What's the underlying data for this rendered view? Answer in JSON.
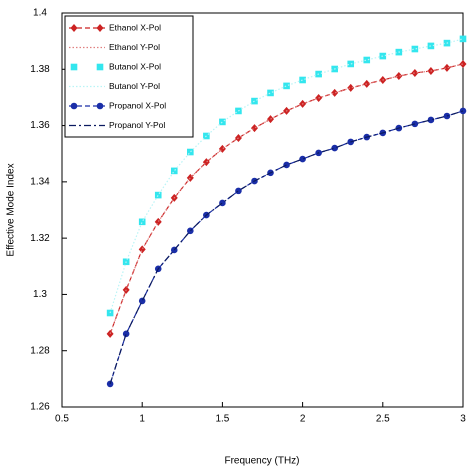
{
  "chart_data": {
    "type": "line",
    "xlabel": "Frequency (THz)",
    "ylabel": "Effective Mode Index",
    "x": [
      0.8,
      0.9,
      1.0,
      1.1,
      1.2,
      1.3,
      1.4,
      1.5,
      1.6,
      1.7,
      1.8,
      1.9,
      2.0,
      2.1,
      2.2,
      2.3,
      2.4,
      2.5,
      2.6,
      2.7,
      2.8,
      2.9,
      3.0
    ],
    "xlim": [
      0.5,
      3
    ],
    "xticks": [
      0.5,
      1,
      1.5,
      2,
      2.5,
      3
    ],
    "ylim": [
      1.26,
      1.4
    ],
    "yticks": [
      1.26,
      1.28,
      1.3,
      1.32,
      1.34,
      1.36,
      1.38,
      1.4
    ],
    "legend": "upper left",
    "series": [
      {
        "name": "Ethanol X-Pol",
        "color": "#cc2222",
        "marker": "diamond",
        "line": "dashed",
        "values": [
          1.286,
          1.3016,
          1.316,
          1.3258,
          1.3343,
          1.3414,
          1.347,
          1.3517,
          1.3556,
          1.3591,
          1.3623,
          1.3652,
          1.3677,
          1.3698,
          1.3716,
          1.3734,
          1.3748,
          1.3762,
          1.3776,
          1.3787,
          1.3794,
          1.3805,
          1.3819
        ]
      },
      {
        "name": "Ethanol Y-Pol",
        "color": "#e08080",
        "marker": null,
        "line": "dotted",
        "values": [
          1.286,
          1.3016,
          1.316,
          1.3258,
          1.3343,
          1.3414,
          1.347,
          1.3517,
          1.3556,
          1.3591,
          1.3623,
          1.3652,
          1.3677,
          1.3698,
          1.3716,
          1.3734,
          1.3748,
          1.3762,
          1.3776,
          1.3787,
          1.3794,
          1.3805,
          1.3819
        ]
      },
      {
        "name": "Butanol X-Pol",
        "color": "#33e6ee",
        "marker": "square",
        "line": null,
        "values": [
          1.2934,
          1.3116,
          1.3258,
          1.3353,
          1.3439,
          1.3506,
          1.3563,
          1.3613,
          1.3652,
          1.3687,
          1.3716,
          1.3741,
          1.3762,
          1.3783,
          1.3801,
          1.3819,
          1.3833,
          1.3847,
          1.3861,
          1.3872,
          1.3883,
          1.3893,
          1.3908
        ]
      },
      {
        "name": "Butanol Y-Pol",
        "color": "#b8f4f6",
        "marker": null,
        "line": "dotted",
        "values": [
          1.2934,
          1.3116,
          1.3258,
          1.3353,
          1.3439,
          1.3506,
          1.3563,
          1.3613,
          1.3652,
          1.3687,
          1.3716,
          1.3741,
          1.3762,
          1.3783,
          1.3801,
          1.3819,
          1.3833,
          1.3847,
          1.3861,
          1.3872,
          1.3883,
          1.3893,
          1.3908
        ]
      },
      {
        "name": "Propanol X-Pol",
        "color": "#1a2ea8",
        "marker": "circle",
        "line": "dashed",
        "values": [
          1.2682,
          1.286,
          1.2977,
          1.3091,
          1.3158,
          1.3226,
          1.3282,
          1.3325,
          1.3368,
          1.3403,
          1.3432,
          1.346,
          1.3481,
          1.3503,
          1.352,
          1.3542,
          1.3559,
          1.3574,
          1.3591,
          1.3606,
          1.362,
          1.3634,
          1.3652
        ]
      },
      {
        "name": "Propanol Y-Pol",
        "color": "#0b1a60",
        "marker": null,
        "line": "dashdot",
        "values": [
          1.2682,
          1.286,
          1.2977,
          1.3091,
          1.3158,
          1.3226,
          1.3282,
          1.3325,
          1.3368,
          1.3403,
          1.3432,
          1.346,
          1.3481,
          1.3503,
          1.352,
          1.3542,
          1.3559,
          1.3574,
          1.3591,
          1.3606,
          1.362,
          1.3634,
          1.3652
        ]
      }
    ]
  }
}
